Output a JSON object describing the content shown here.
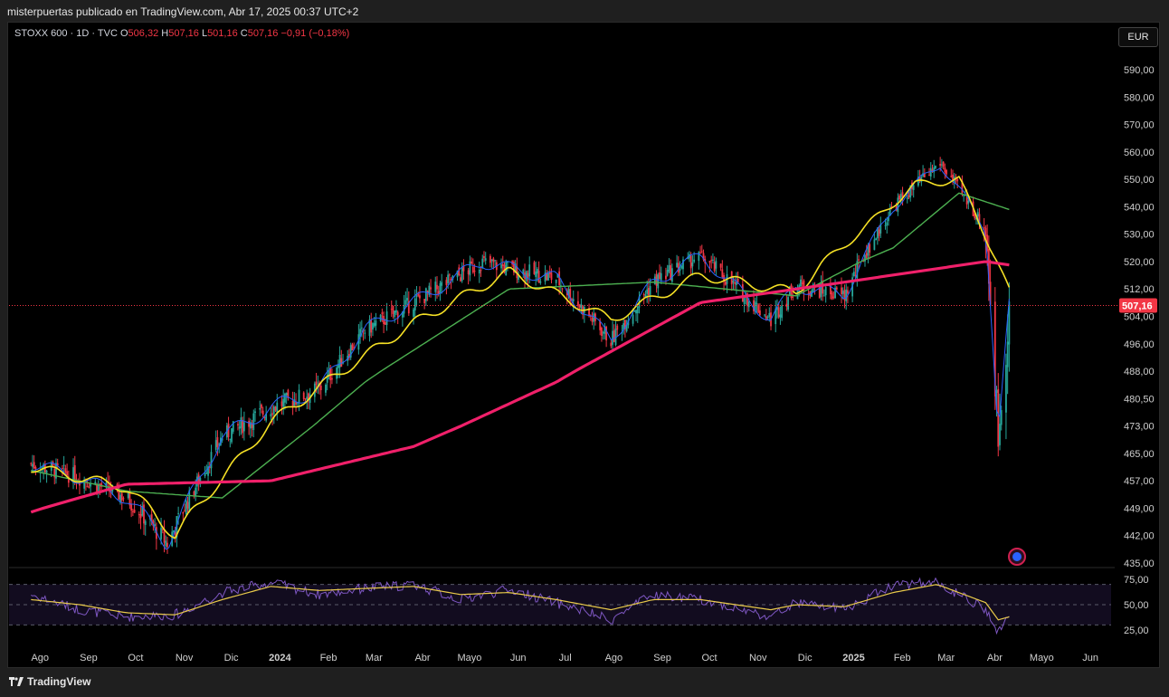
{
  "header": {
    "attribution": "misterpuertas publicado en TradingView.com, Abr 17, 2025 00:37 UTC+2"
  },
  "legend": {
    "symbol": "STOXX 600 · 1D · TVC",
    "o_label": "O",
    "o_value": "506,32",
    "h_label": "H",
    "h_value": "507,16",
    "l_label": "L",
    "l_value": "501,16",
    "c_label": "C",
    "c_value": "507,16",
    "change": "−0,91 (−0,18%)"
  },
  "currency_button": "EUR",
  "footer": {
    "brand": "TradingView"
  },
  "colors": {
    "up": "#26a69a",
    "down": "#f23645",
    "ma_fast": "#2962ff",
    "ma_mid": "#f5e025",
    "ma_slow": "#4caf50",
    "ma_long": "#f0206a",
    "rsi": "#7e57c2",
    "rsi_ma": "#e8c94a",
    "last_price_bg": "#f23645"
  },
  "chart_data": {
    "type": "candlestick",
    "price_axis": {
      "ticks": [
        "590,00",
        "580,00",
        "570,00",
        "560,00",
        "550,00",
        "540,00",
        "530,00",
        "520,00",
        "512,00",
        "504,00",
        "496,00",
        "488,00",
        "480,50",
        "473,00",
        "465,00",
        "457,00",
        "449,00",
        "442,00",
        "435,00"
      ],
      "last_price_label": "507,16",
      "last_price": 507.16
    },
    "time_axis": {
      "ticks": [
        "Ago",
        "Sep",
        "Oct",
        "Nov",
        "Dic",
        "2024",
        "Feb",
        "Mar",
        "Abr",
        "Mayo",
        "Jun",
        "Jul",
        "Ago",
        "Sep",
        "Oct",
        "Nov",
        "Dic",
        "2025",
        "Feb",
        "Mar",
        "Abr",
        "Mayo",
        "Jun"
      ],
      "bold": [
        "2024",
        "2025"
      ]
    },
    "price_series": {
      "dates": [
        "2023-08-01",
        "2023-09-01",
        "2023-10-01",
        "2023-10-27",
        "2023-12-01",
        "2024-01-01",
        "2024-02-01",
        "2024-03-01",
        "2024-04-01",
        "2024-05-15",
        "2024-06-01",
        "2024-07-01",
        "2024-08-05",
        "2024-09-01",
        "2024-10-01",
        "2024-11-15",
        "2024-12-01",
        "2025-01-01",
        "2025-02-01",
        "2025-03-03",
        "2025-04-01",
        "2025-04-09",
        "2025-04-16"
      ],
      "close": [
        462,
        458,
        452,
        440,
        470,
        478,
        483,
        500,
        508,
        520,
        518,
        515,
        497,
        514,
        522,
        503,
        513,
        510,
        540,
        556,
        532,
        470,
        507.16
      ]
    },
    "ma_long": {
      "dates": [
        "2023-08-01",
        "2023-10-01",
        "2024-01-01",
        "2024-04-01",
        "2024-07-01",
        "2024-10-01",
        "2025-01-01",
        "2025-04-01",
        "2025-04-16"
      ],
      "values": [
        448,
        456,
        457,
        467,
        485,
        508,
        514,
        520,
        519
      ]
    },
    "ma_slow": {
      "dates": [
        "2023-08-01",
        "2023-10-01",
        "2023-12-01",
        "2024-03-01",
        "2024-06-01",
        "2024-09-01",
        "2024-12-01",
        "2025-02-01",
        "2025-03-15",
        "2025-04-16"
      ],
      "values": [
        460,
        454,
        452,
        485,
        512,
        514,
        510,
        525,
        545,
        539
      ]
    },
    "ma_mid": {
      "dates": [
        "2023-08-01",
        "2023-10-01",
        "2023-11-01",
        "2024-01-01",
        "2024-04-01",
        "2024-06-01",
        "2024-08-05",
        "2024-10-01",
        "2024-12-01",
        "2025-02-15",
        "2025-03-15",
        "2025-04-16"
      ],
      "values": [
        461,
        455,
        442,
        474,
        502,
        517,
        503,
        516,
        511,
        548,
        550,
        511
      ]
    },
    "rsi": {
      "ticks": [
        "75,00",
        "50,00",
        "25,00"
      ],
      "upper": 70,
      "lower": 30,
      "dates": [
        "2023-08-01",
        "2023-09-01",
        "2023-10-01",
        "2023-11-01",
        "2023-12-01",
        "2024-01-01",
        "2024-02-01",
        "2024-03-01",
        "2024-04-01",
        "2024-05-01",
        "2024-06-01",
        "2024-07-01",
        "2024-08-05",
        "2024-09-01",
        "2024-10-01",
        "2024-11-15",
        "2024-12-01",
        "2025-01-01",
        "2025-02-01",
        "2025-03-01",
        "2025-04-01",
        "2025-04-09",
        "2025-04-16"
      ],
      "values": [
        60,
        45,
        38,
        40,
        62,
        72,
        60,
        66,
        70,
        55,
        65,
        52,
        35,
        60,
        55,
        38,
        52,
        45,
        70,
        72,
        45,
        22,
        42
      ],
      "ma": [
        55,
        50,
        42,
        40,
        55,
        68,
        64,
        66,
        68,
        60,
        62,
        55,
        45,
        55,
        55,
        45,
        50,
        48,
        62,
        70,
        52,
        35,
        38
      ]
    }
  }
}
